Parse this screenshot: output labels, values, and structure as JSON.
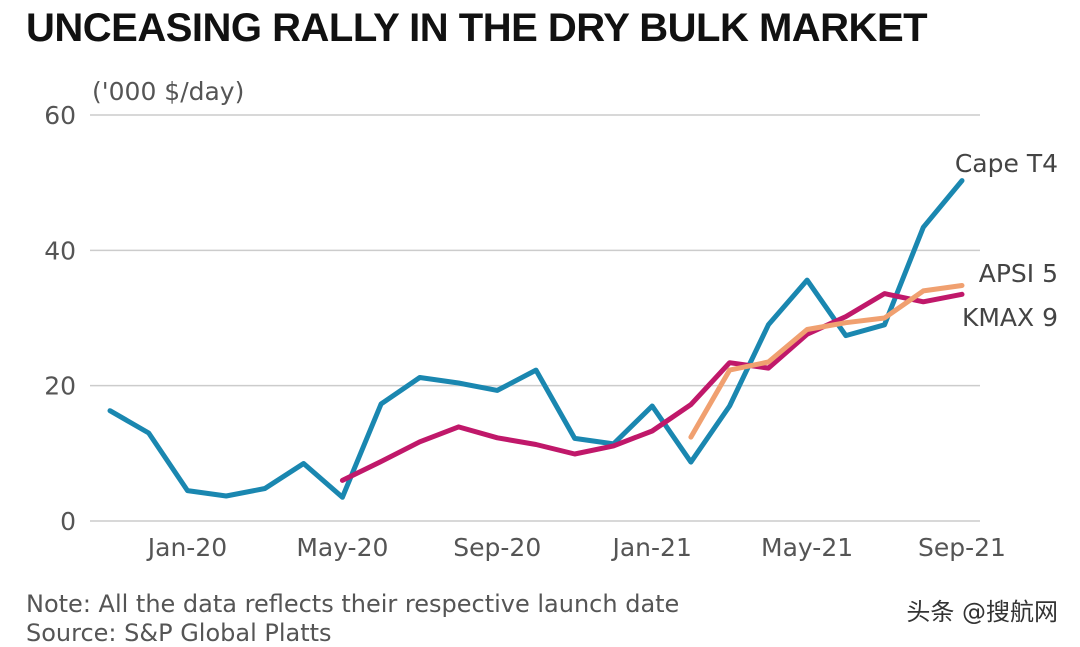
{
  "title": "UNCEASING RALLY IN THE DRY BULK MARKET",
  "note": "Note: All the data reflects their respective launch date",
  "source": "Source: S&P Global Platts",
  "watermark": "头条 @搜航网",
  "colors": {
    "cape": "#1a87b0",
    "kmax": "#c0186a",
    "apsi": "#f0a070",
    "grid": "#cccccc",
    "text": "#555555"
  },
  "chart_data": {
    "type": "line",
    "title": "UNCEASING RALLY IN THE DRY BULK MARKET",
    "ylabel": "('000 $/day)",
    "xlabel": "",
    "ylim": [
      0,
      60
    ],
    "y_ticks": [
      0,
      20,
      40,
      60
    ],
    "x_ticks": [
      {
        "label": "Jan-20",
        "x": 2
      },
      {
        "label": "May-20",
        "x": 6
      },
      {
        "label": "Sep-20",
        "x": 10
      },
      {
        "label": "Jan-21",
        "x": 14
      },
      {
        "label": "May-21",
        "x": 18
      },
      {
        "label": "Sep-21",
        "x": 22
      }
    ],
    "xlim": [
      0,
      22
    ],
    "grid": true,
    "series": [
      {
        "name": "Cape T4",
        "color": "#1a87b0",
        "x": [
          0,
          1,
          2,
          3,
          4,
          5,
          6,
          7,
          8,
          9,
          10,
          11,
          12,
          13,
          14,
          15,
          16,
          17,
          18,
          19,
          20,
          21,
          22
        ],
        "values": [
          16.3,
          13.0,
          4.5,
          3.7,
          4.8,
          8.5,
          3.5,
          17.3,
          21.2,
          20.4,
          19.3,
          22.3,
          12.2,
          11.4,
          17.0,
          8.7,
          17.0,
          29.0,
          35.6,
          27.4,
          29.0,
          43.4,
          50.3
        ]
      },
      {
        "name": "KMAX 9",
        "color": "#c0186a",
        "x": [
          6,
          7,
          8,
          9,
          10,
          11,
          12,
          13,
          14,
          15,
          16,
          17,
          18,
          19,
          20,
          21,
          22
        ],
        "values": [
          6.0,
          8.8,
          11.7,
          13.9,
          12.3,
          11.3,
          9.9,
          11.1,
          13.3,
          17.2,
          23.4,
          22.6,
          27.6,
          30.2,
          33.6,
          32.4,
          33.5
        ]
      },
      {
        "name": "APSI 5",
        "color": "#f0a070",
        "x": [
          15,
          16,
          17,
          18,
          19,
          20,
          21,
          22
        ],
        "values": [
          12.4,
          22.3,
          23.5,
          28.3,
          29.3,
          30.0,
          34.0,
          34.8
        ]
      }
    ]
  }
}
